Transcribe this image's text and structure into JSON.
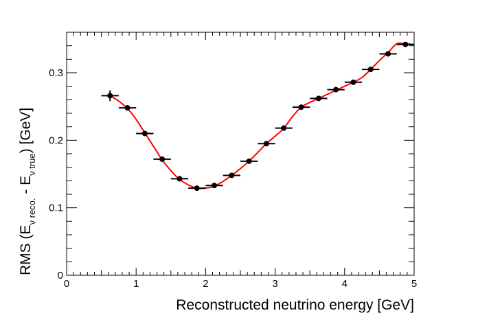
{
  "chart_data": {
    "type": "scatter",
    "title": "",
    "xlabel": "Reconstructed neutrino energy [GeV]",
    "ylabel": {
      "prefix": "RMS (E",
      "sub1": "ν reco.",
      "middle": " - E",
      "sub2": "ν true",
      "suffix": ") [GeV]"
    },
    "xlim": [
      0,
      5
    ],
    "ylim": [
      0,
      0.36
    ],
    "x_ticks": [
      "0",
      "1",
      "2",
      "3",
      "4",
      "5"
    ],
    "y_ticks": [
      "0",
      "0.1",
      "0.2",
      "0.3"
    ],
    "grid": false,
    "colors": {
      "points": "#000000",
      "fit_curve": "#ff0000"
    },
    "series": [
      {
        "x": [
          0.625,
          0.875,
          1.125,
          1.375,
          1.625,
          1.875,
          2.125,
          2.375,
          2.625,
          2.875,
          3.125,
          3.375,
          3.625,
          3.875,
          4.125,
          4.375,
          4.625,
          4.875
        ],
        "x_err": [
          0.125,
          0.125,
          0.125,
          0.125,
          0.125,
          0.125,
          0.125,
          0.125,
          0.125,
          0.125,
          0.125,
          0.125,
          0.125,
          0.125,
          0.125,
          0.125,
          0.125,
          0.125
        ],
        "y": [
          0.266,
          0.248,
          0.21,
          0.172,
          0.143,
          0.129,
          0.133,
          0.148,
          0.169,
          0.195,
          0.218,
          0.249,
          0.262,
          0.275,
          0.286,
          0.305,
          0.328,
          0.342
        ],
        "y_err": [
          0.008,
          0.004,
          0.003,
          0.002,
          0.002,
          0.002,
          0.002,
          0.002,
          0.002,
          0.002,
          0.002,
          0.002,
          0.002,
          0.002,
          0.002,
          0.002,
          0.002,
          0.002
        ]
      }
    ],
    "fit_curve": {
      "x": [
        0.625,
        0.75,
        0.875,
        1.0,
        1.125,
        1.25,
        1.375,
        1.5,
        1.625,
        1.75,
        1.875,
        2.0,
        2.125,
        2.25,
        2.375,
        2.5,
        2.625,
        2.75,
        2.875,
        3.0,
        3.125,
        3.25,
        3.375,
        3.5,
        3.625,
        3.75,
        3.875,
        4.0,
        4.125,
        4.25,
        4.375,
        4.5,
        4.625,
        4.75,
        4.875,
        5.0
      ],
      "y": [
        0.266,
        0.258,
        0.247,
        0.231,
        0.211,
        0.191,
        0.171,
        0.155,
        0.142,
        0.134,
        0.129,
        0.129,
        0.132,
        0.139,
        0.148,
        0.158,
        0.169,
        0.182,
        0.195,
        0.206,
        0.218,
        0.235,
        0.249,
        0.256,
        0.262,
        0.268,
        0.274,
        0.28,
        0.286,
        0.293,
        0.305,
        0.318,
        0.33,
        0.343,
        0.343,
        0.342
      ]
    }
  }
}
